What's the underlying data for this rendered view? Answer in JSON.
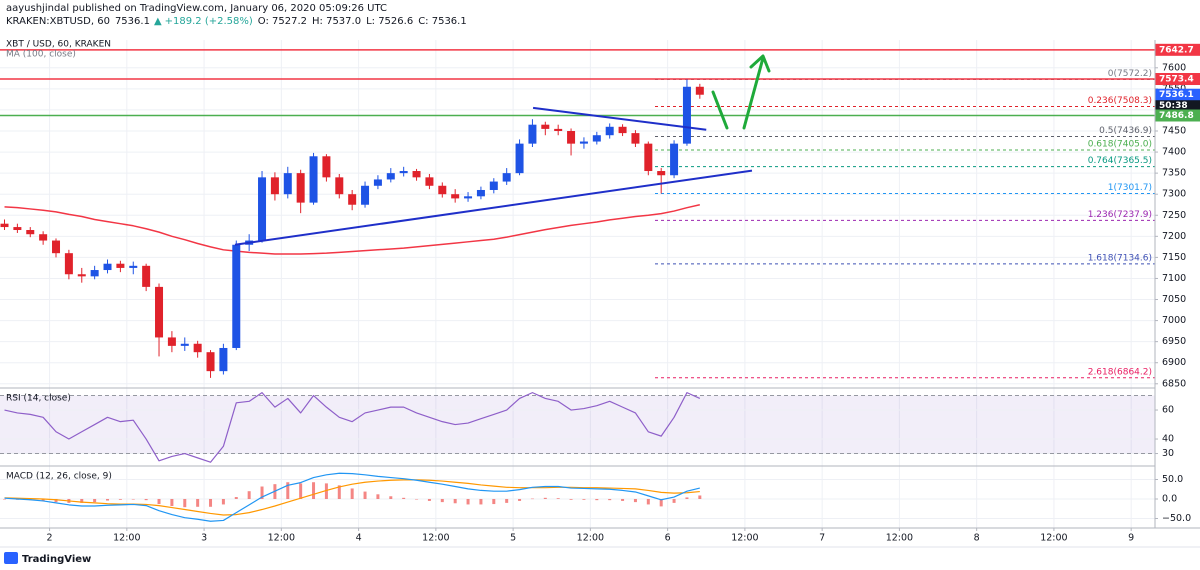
{
  "header": {
    "author": "aayushjindal published on TradingView.com, January 06, 2020 05:09:26 UTC",
    "symbol": "KRAKEN:XBTUSD, 60",
    "last": "7536.1",
    "arrow": "▲",
    "change": "+189.2 (+2.58%)",
    "open": "O: 7527.2",
    "high": "H: 7537.0",
    "low": "L: 7526.6",
    "close": "C: 7536.1"
  },
  "footer": {
    "brand": "TradingView"
  },
  "chart_data": [
    {
      "type": "candlestick",
      "title": "XBT / USD, 60, KRAKEN",
      "up_color": "#1e53e5",
      "down_color": "#e0222b",
      "x": [
        -7,
        -5,
        -3,
        -1,
        1,
        3,
        5,
        7,
        9,
        11,
        13,
        15,
        17,
        19,
        21,
        23,
        25,
        27,
        29,
        31,
        33,
        35,
        37,
        39,
        41,
        43,
        45,
        47,
        49,
        51,
        53,
        55,
        57,
        59,
        61,
        63,
        65,
        67,
        69,
        71,
        73,
        75,
        77,
        79,
        81,
        83,
        85,
        87,
        89,
        91,
        93,
        95,
        97,
        99,
        101
      ],
      "ohlc": [
        [
          7230,
          7240,
          7215,
          7222
        ],
        [
          7222,
          7230,
          7208,
          7215
        ],
        [
          7215,
          7222,
          7198,
          7205
        ],
        [
          7205,
          7212,
          7180,
          7190
        ],
        [
          7190,
          7195,
          7150,
          7160
        ],
        [
          7160,
          7168,
          7098,
          7110
        ],
        [
          7110,
          7125,
          7090,
          7105
        ],
        [
          7105,
          7130,
          7098,
          7120
        ],
        [
          7120,
          7145,
          7112,
          7135
        ],
        [
          7135,
          7142,
          7115,
          7125
        ],
        [
          7125,
          7140,
          7110,
          7130
        ],
        [
          7130,
          7135,
          7070,
          7080
        ],
        [
          7080,
          7088,
          6915,
          6960
        ],
        [
          6960,
          6975,
          6925,
          6940
        ],
        [
          6940,
          6960,
          6928,
          6945
        ],
        [
          6945,
          6952,
          6912,
          6925
        ],
        [
          6925,
          6930,
          6864,
          6880
        ],
        [
          6880,
          6945,
          6872,
          6935
        ],
        [
          6935,
          7190,
          6930,
          7180
        ],
        [
          7180,
          7205,
          7165,
          7190
        ],
        [
          7190,
          7355,
          7185,
          7340
        ],
        [
          7340,
          7352,
          7285,
          7300
        ],
        [
          7300,
          7365,
          7290,
          7350
        ],
        [
          7350,
          7358,
          7255,
          7280
        ],
        [
          7280,
          7398,
          7275,
          7390
        ],
        [
          7390,
          7395,
          7330,
          7340
        ],
        [
          7340,
          7348,
          7290,
          7300
        ],
        [
          7300,
          7310,
          7262,
          7275
        ],
        [
          7275,
          7330,
          7268,
          7320
        ],
        [
          7320,
          7345,
          7312,
          7335
        ],
        [
          7335,
          7362,
          7328,
          7350
        ],
        [
          7350,
          7365,
          7342,
          7355
        ],
        [
          7355,
          7360,
          7332,
          7340
        ],
        [
          7340,
          7348,
          7312,
          7320
        ],
        [
          7320,
          7328,
          7292,
          7300
        ],
        [
          7300,
          7312,
          7280,
          7290
        ],
        [
          7290,
          7305,
          7282,
          7295
        ],
        [
          7295,
          7318,
          7288,
          7310
        ],
        [
          7310,
          7338,
          7302,
          7330
        ],
        [
          7330,
          7362,
          7322,
          7350
        ],
        [
          7350,
          7430,
          7345,
          7420
        ],
        [
          7420,
          7478,
          7412,
          7465
        ],
        [
          7465,
          7472,
          7440,
          7455
        ],
        [
          7455,
          7465,
          7440,
          7450
        ],
        [
          7450,
          7456,
          7392,
          7420
        ],
        [
          7420,
          7435,
          7408,
          7425
        ],
        [
          7425,
          7448,
          7418,
          7440
        ],
        [
          7440,
          7468,
          7432,
          7460
        ],
        [
          7460,
          7466,
          7438,
          7445
        ],
        [
          7445,
          7452,
          7412,
          7420
        ],
        [
          7420,
          7425,
          7345,
          7355
        ],
        [
          7355,
          7362,
          7301.7,
          7345
        ],
        [
          7345,
          7428,
          7338,
          7420
        ],
        [
          7420,
          7572.2,
          7415,
          7555
        ],
        [
          7555,
          7562,
          7526.6,
          7536.1
        ]
      ],
      "xlim": [
        -7.7,
        171.7
      ],
      "xticks": [
        {
          "value": 0,
          "label": "2"
        },
        {
          "value": 12,
          "label": "12:00"
        },
        {
          "value": 24,
          "label": "3"
        },
        {
          "value": 36,
          "label": "12:00"
        },
        {
          "value": 48,
          "label": "4"
        },
        {
          "value": 60,
          "label": "12:00"
        },
        {
          "value": 72,
          "label": "5"
        },
        {
          "value": 84,
          "label": "12:00"
        },
        {
          "value": 96,
          "label": "6"
        },
        {
          "value": 108,
          "label": "12:00"
        },
        {
          "value": 120,
          "label": "7"
        },
        {
          "value": 132,
          "label": "12:00"
        },
        {
          "value": 144,
          "label": "8"
        },
        {
          "value": 156,
          "label": "12:00"
        },
        {
          "value": 168,
          "label": "9"
        }
      ],
      "ylim": [
        6840,
        7666
      ],
      "yticks": [
        6850,
        6900,
        6950,
        7000,
        7050,
        7100,
        7150,
        7200,
        7250,
        7300,
        7350,
        7400,
        7450,
        7500,
        7550,
        7600
      ],
      "grid": true,
      "indicator": {
        "name": "MA (100, close)",
        "color": "#f23645",
        "values": [
          7270,
          7268,
          7265,
          7262,
          7258,
          7252,
          7247,
          7240,
          7235,
          7230,
          7225,
          7218,
          7210,
          7200,
          7192,
          7183,
          7175,
          7168,
          7165,
          7162,
          7160,
          7158,
          7158,
          7158,
          7159,
          7160,
          7162,
          7164,
          7166,
          7168,
          7170,
          7172,
          7175,
          7178,
          7181,
          7184,
          7187,
          7190,
          7193,
          7198,
          7204,
          7210,
          7216,
          7221,
          7226,
          7230,
          7234,
          7239,
          7243,
          7247,
          7250,
          7254,
          7260,
          7268,
          7275
        ]
      },
      "price_lines": [
        {
          "value": 7642.7,
          "color": "#f23645"
        },
        {
          "value": 7573.4,
          "color": "#f23645"
        },
        {
          "value": 7486.8,
          "color": "#4caf50"
        }
      ],
      "last_price": {
        "value": 7536.1,
        "color": "#2962ff",
        "countdown": "50:38"
      },
      "fibonacci": [
        {
          "label": "0(7572.2)",
          "value": 7572.2,
          "color": "#787b86"
        },
        {
          "label": "0.236(7508.3)",
          "value": 7508.3,
          "color": "#e0222b"
        },
        {
          "label": "0.5(7436.9)",
          "value": 7436.9,
          "color": "#5d606b"
        },
        {
          "label": "0.618(7405.0)",
          "value": 7405.0,
          "color": "#4caf50"
        },
        {
          "label": "0.764(7365.5)",
          "value": 7365.5,
          "color": "#089981"
        },
        {
          "label": "1(7301.7)",
          "value": 7301.7,
          "color": "#2196f3"
        },
        {
          "label": "1.236(7237.9)",
          "value": 7237.9,
          "color": "#9c27b0"
        },
        {
          "label": "1.618(7134.6)",
          "value": 7134.6,
          "color": "#3f51b5"
        },
        {
          "label": "2.618(6864.2)",
          "value": 6864.2,
          "color": "#e91e63"
        }
      ],
      "trendlines": [
        {
          "color": "#1f2fc9",
          "x": [
            75.1,
            102
          ],
          "y": [
            7505,
            7453
          ]
        },
        {
          "color": "#1f2fc9",
          "x": [
            28.8,
            109.1
          ],
          "y": [
            7180,
            7356
          ]
        }
      ]
    },
    {
      "type": "line",
      "title": "RSI (14, close)",
      "color": "#8e5fc9",
      "band_color": "#7e57c2",
      "values": [
        60,
        58,
        57,
        55,
        45,
        40,
        45,
        50,
        55,
        52,
        53,
        40,
        25,
        28,
        30,
        27,
        24,
        35,
        65,
        66,
        72,
        62,
        68,
        58,
        70,
        62,
        55,
        52,
        58,
        60,
        62,
        62,
        58,
        55,
        52,
        50,
        51,
        54,
        57,
        60,
        68,
        72,
        68,
        66,
        60,
        61,
        63,
        66,
        62,
        58,
        45,
        42,
        55,
        72,
        68
      ],
      "ylim": [
        21.4,
        75.2
      ],
      "yticks": [
        30,
        40,
        60
      ],
      "band": [
        30,
        70
      ]
    },
    {
      "type": "macd",
      "title": "MACD (12, 26, close, 9)",
      "macd": {
        "color": "#2196f3",
        "values": [
          2,
          0,
          -2,
          -5,
          -10,
          -15,
          -18,
          -18,
          -16,
          -15,
          -14,
          -17,
          -30,
          -40,
          -48,
          -52,
          -57,
          -55,
          -35,
          -15,
          5,
          20,
          35,
          42,
          55,
          62,
          66,
          65,
          62,
          58,
          55,
          52,
          48,
          43,
          38,
          32,
          26,
          22,
          20,
          20,
          24,
          30,
          32,
          32,
          28,
          27,
          26,
          25,
          22,
          18,
          8,
          -2,
          5,
          20,
          28
        ]
      },
      "signal": {
        "color": "#ff9800",
        "values": [
          3,
          2,
          1,
          0,
          -2,
          -5,
          -8,
          -10,
          -12,
          -13,
          -13,
          -14,
          -17,
          -22,
          -27,
          -32,
          -37,
          -41,
          -40,
          -35,
          -27,
          -18,
          -8,
          2,
          12,
          22,
          31,
          38,
          43,
          46,
          48,
          49,
          49,
          48,
          46,
          43,
          40,
          36,
          33,
          30,
          29,
          29,
          29,
          30,
          30,
          29,
          29,
          28,
          27,
          26,
          22,
          17,
          15,
          16,
          19
        ]
      },
      "histogram": {
        "color": "#ef5350",
        "values": [
          -1,
          -2,
          -3,
          -5,
          -8,
          -10,
          -10,
          -8,
          -4,
          -2,
          -1,
          -3,
          -13,
          -18,
          -21,
          -20,
          -20,
          -14,
          5,
          20,
          32,
          38,
          43,
          40,
          43,
          40,
          35,
          27,
          19,
          12,
          7,
          3,
          -1,
          -5,
          -8,
          -11,
          -14,
          -14,
          -13,
          -10,
          -5,
          1,
          3,
          2,
          -2,
          -2,
          -3,
          -3,
          -5,
          -8,
          -14,
          -19,
          -10,
          4,
          9
        ]
      },
      "ylim": [
        -74.4,
        84.6
      ],
      "yticks": [
        {
          "value": -50,
          "label": "−50.0"
        },
        {
          "value": 0,
          "label": "0.0"
        },
        {
          "value": 50,
          "label": "50.0"
        }
      ]
    }
  ]
}
